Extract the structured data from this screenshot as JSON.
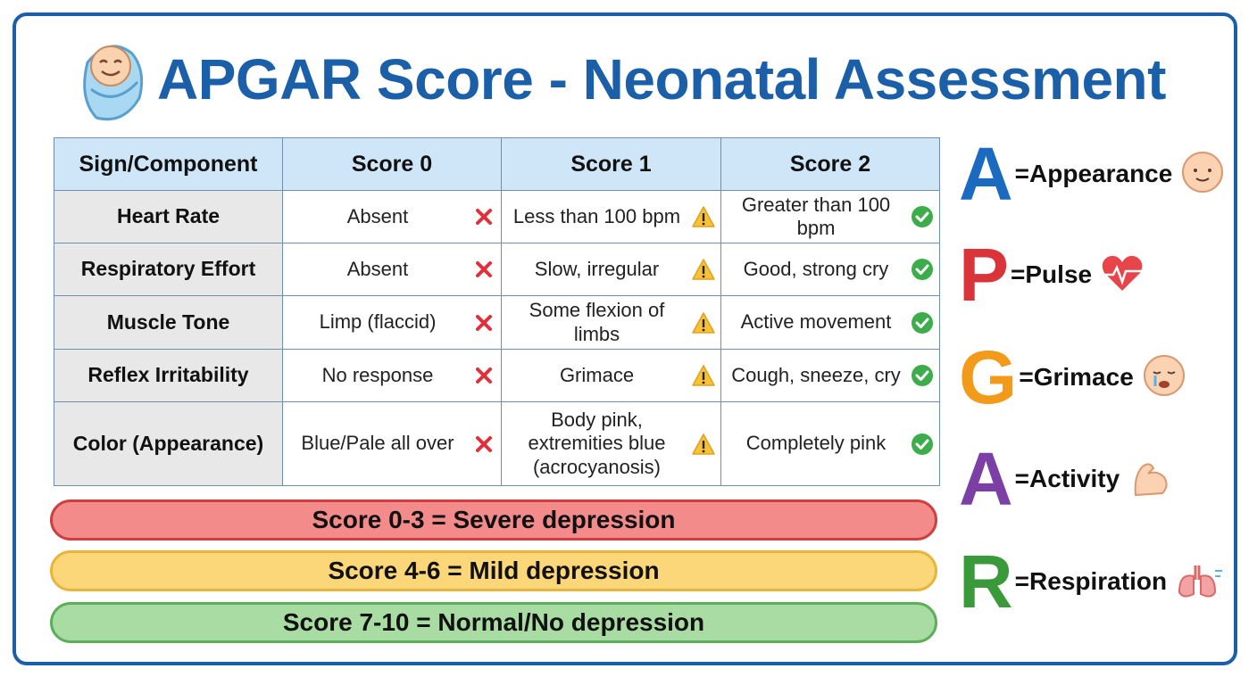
{
  "title": "APGAR Score - Neonatal Assessment",
  "table": {
    "header": [
      "Sign/Component",
      "Score 0",
      "Score 1",
      "Score 2"
    ],
    "rows": [
      [
        "Heart Rate",
        "Absent",
        "Less than 100 bpm",
        "Greater than 100 bpm"
      ],
      [
        "Respiratory Effort",
        "Absent",
        "Slow, irregular",
        "Good, strong cry"
      ],
      [
        "Muscle Tone",
        "Limp (flaccid)",
        "Some flexion of limbs",
        "Active movement"
      ],
      [
        "Reflex Irritability",
        "No response",
        "Grimace",
        "Cough, sneeze, cry"
      ],
      [
        "Color (Appearance)",
        "Blue/Pale all over",
        "Body pink, extremities blue (acrocyanosis)",
        "Completely pink"
      ]
    ]
  },
  "interpretation": [
    "Score 0-3 = Severe depression",
    "Score 4-6 = Mild depression",
    "Score 7-10 = Normal/No depression"
  ],
  "mnemonic": [
    {
      "letter": "A",
      "text": "=Appearance"
    },
    {
      "letter": "P",
      "text": "=Pulse"
    },
    {
      "letter": "G",
      "text": "=Grimace"
    },
    {
      "letter": "A",
      "text": "=Activity"
    },
    {
      "letter": "R",
      "text": "=Respiration"
    }
  ]
}
